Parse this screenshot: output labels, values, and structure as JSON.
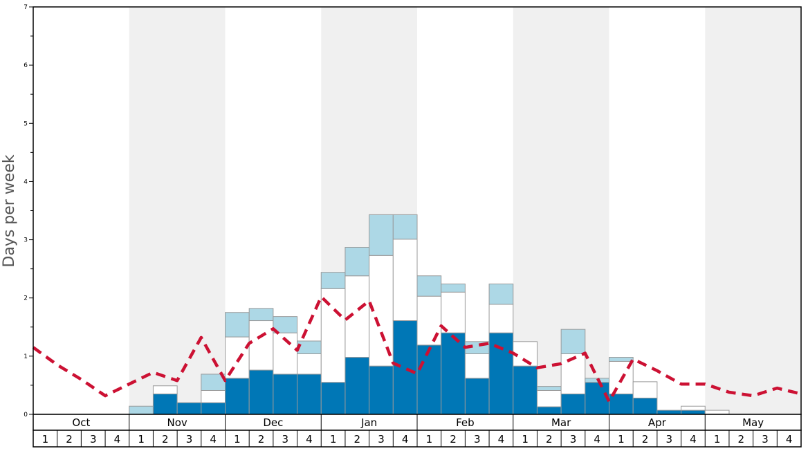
{
  "chart_data": {
    "type": "bar",
    "ylabel": "Days per week",
    "ylim": [
      0,
      7
    ],
    "y_ticks": [
      "0",
      "1",
      "2",
      "3",
      "4",
      "5",
      "6",
      "7"
    ],
    "months": [
      "Oct",
      "Nov",
      "Dec",
      "Jan",
      "Feb",
      "Mar",
      "Apr",
      "May"
    ],
    "week_labels": [
      "1",
      "2",
      "3",
      "4"
    ],
    "shaded_months": [
      "Nov",
      "Jan",
      "Mar",
      "May"
    ],
    "colors": {
      "dark_blue": "#0077b6",
      "white": "#ffffff",
      "light_blue": "#add8e6",
      "dashed_line": "#cc1133",
      "shade": "#f0f0f0",
      "bar_stroke": "#999999"
    },
    "series": [
      {
        "values": [
          0,
          0,
          0,
          0,
          0,
          0.35,
          0.2,
          0.2,
          0.62,
          0.76,
          0.69,
          0.69,
          0.55,
          0.98,
          0.83,
          1.61,
          1.19,
          1.4,
          0.62,
          1.4,
          0.83,
          0.13,
          0.35,
          0.55,
          0.35,
          0.28,
          0.07,
          0.07,
          0,
          0,
          0,
          0
        ]
      },
      {
        "values": [
          0,
          0,
          0,
          0,
          0,
          0.14,
          0,
          0.21,
          0.71,
          0.85,
          0.71,
          0.35,
          1.61,
          1.4,
          1.9,
          1.4,
          0.84,
          0.7,
          0.42,
          0.49,
          0.42,
          0.28,
          0.69,
          0,
          0.56,
          0.28,
          0,
          0.07,
          0.07,
          0,
          0,
          0
        ]
      },
      {
        "values": [
          0,
          0,
          0,
          0,
          0.14,
          0,
          0,
          0.28,
          0.42,
          0.21,
          0.28,
          0.22,
          0.28,
          0.49,
          0.7,
          0.42,
          0.35,
          0.14,
          0.21,
          0.35,
          0,
          0.07,
          0.42,
          0.07,
          0.07,
          0,
          0,
          0,
          0,
          0,
          0,
          0
        ]
      },
      {
        "style": "dashed",
        "values": [
          1.15,
          0.85,
          0.6,
          0.32,
          0.52,
          0.72,
          0.58,
          1.32,
          0.58,
          1.22,
          1.47,
          1.1,
          2.02,
          1.62,
          1.95,
          0.88,
          0.7,
          1.52,
          1.15,
          1.22,
          1.05,
          0.8,
          0.87,
          1.05,
          0.22,
          0.95,
          0.75,
          0.52,
          0.52,
          0.38,
          0.32,
          0.45,
          0.35
        ]
      }
    ]
  }
}
